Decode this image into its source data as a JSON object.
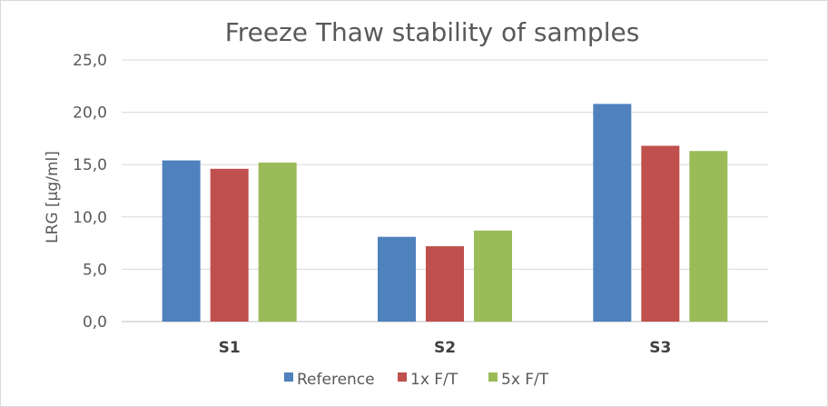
{
  "chart_data": {
    "type": "bar",
    "title": "Freeze Thaw stability of samples",
    "xlabel": "",
    "ylabel": "LRG [µg/ml]",
    "categories": [
      "S1",
      "S2",
      "S3"
    ],
    "series": [
      {
        "name": "Reference",
        "color": "#4f81bd",
        "values": [
          15.4,
          8.1,
          20.8
        ]
      },
      {
        "name": "1x F/T",
        "color": "#c0504d",
        "values": [
          14.6,
          7.2,
          16.8
        ]
      },
      {
        "name": "5x F/T",
        "color": "#9bbb59",
        "values": [
          15.2,
          8.7,
          16.3
        ]
      }
    ],
    "ylim": [
      0,
      25
    ],
    "yticks": [
      0,
      5,
      10,
      15,
      20,
      25
    ],
    "ytick_labels": [
      "0,0",
      "5,0",
      "10,0",
      "15,0",
      "20,0",
      "25,0"
    ],
    "grid": true,
    "legend_position": "bottom"
  }
}
